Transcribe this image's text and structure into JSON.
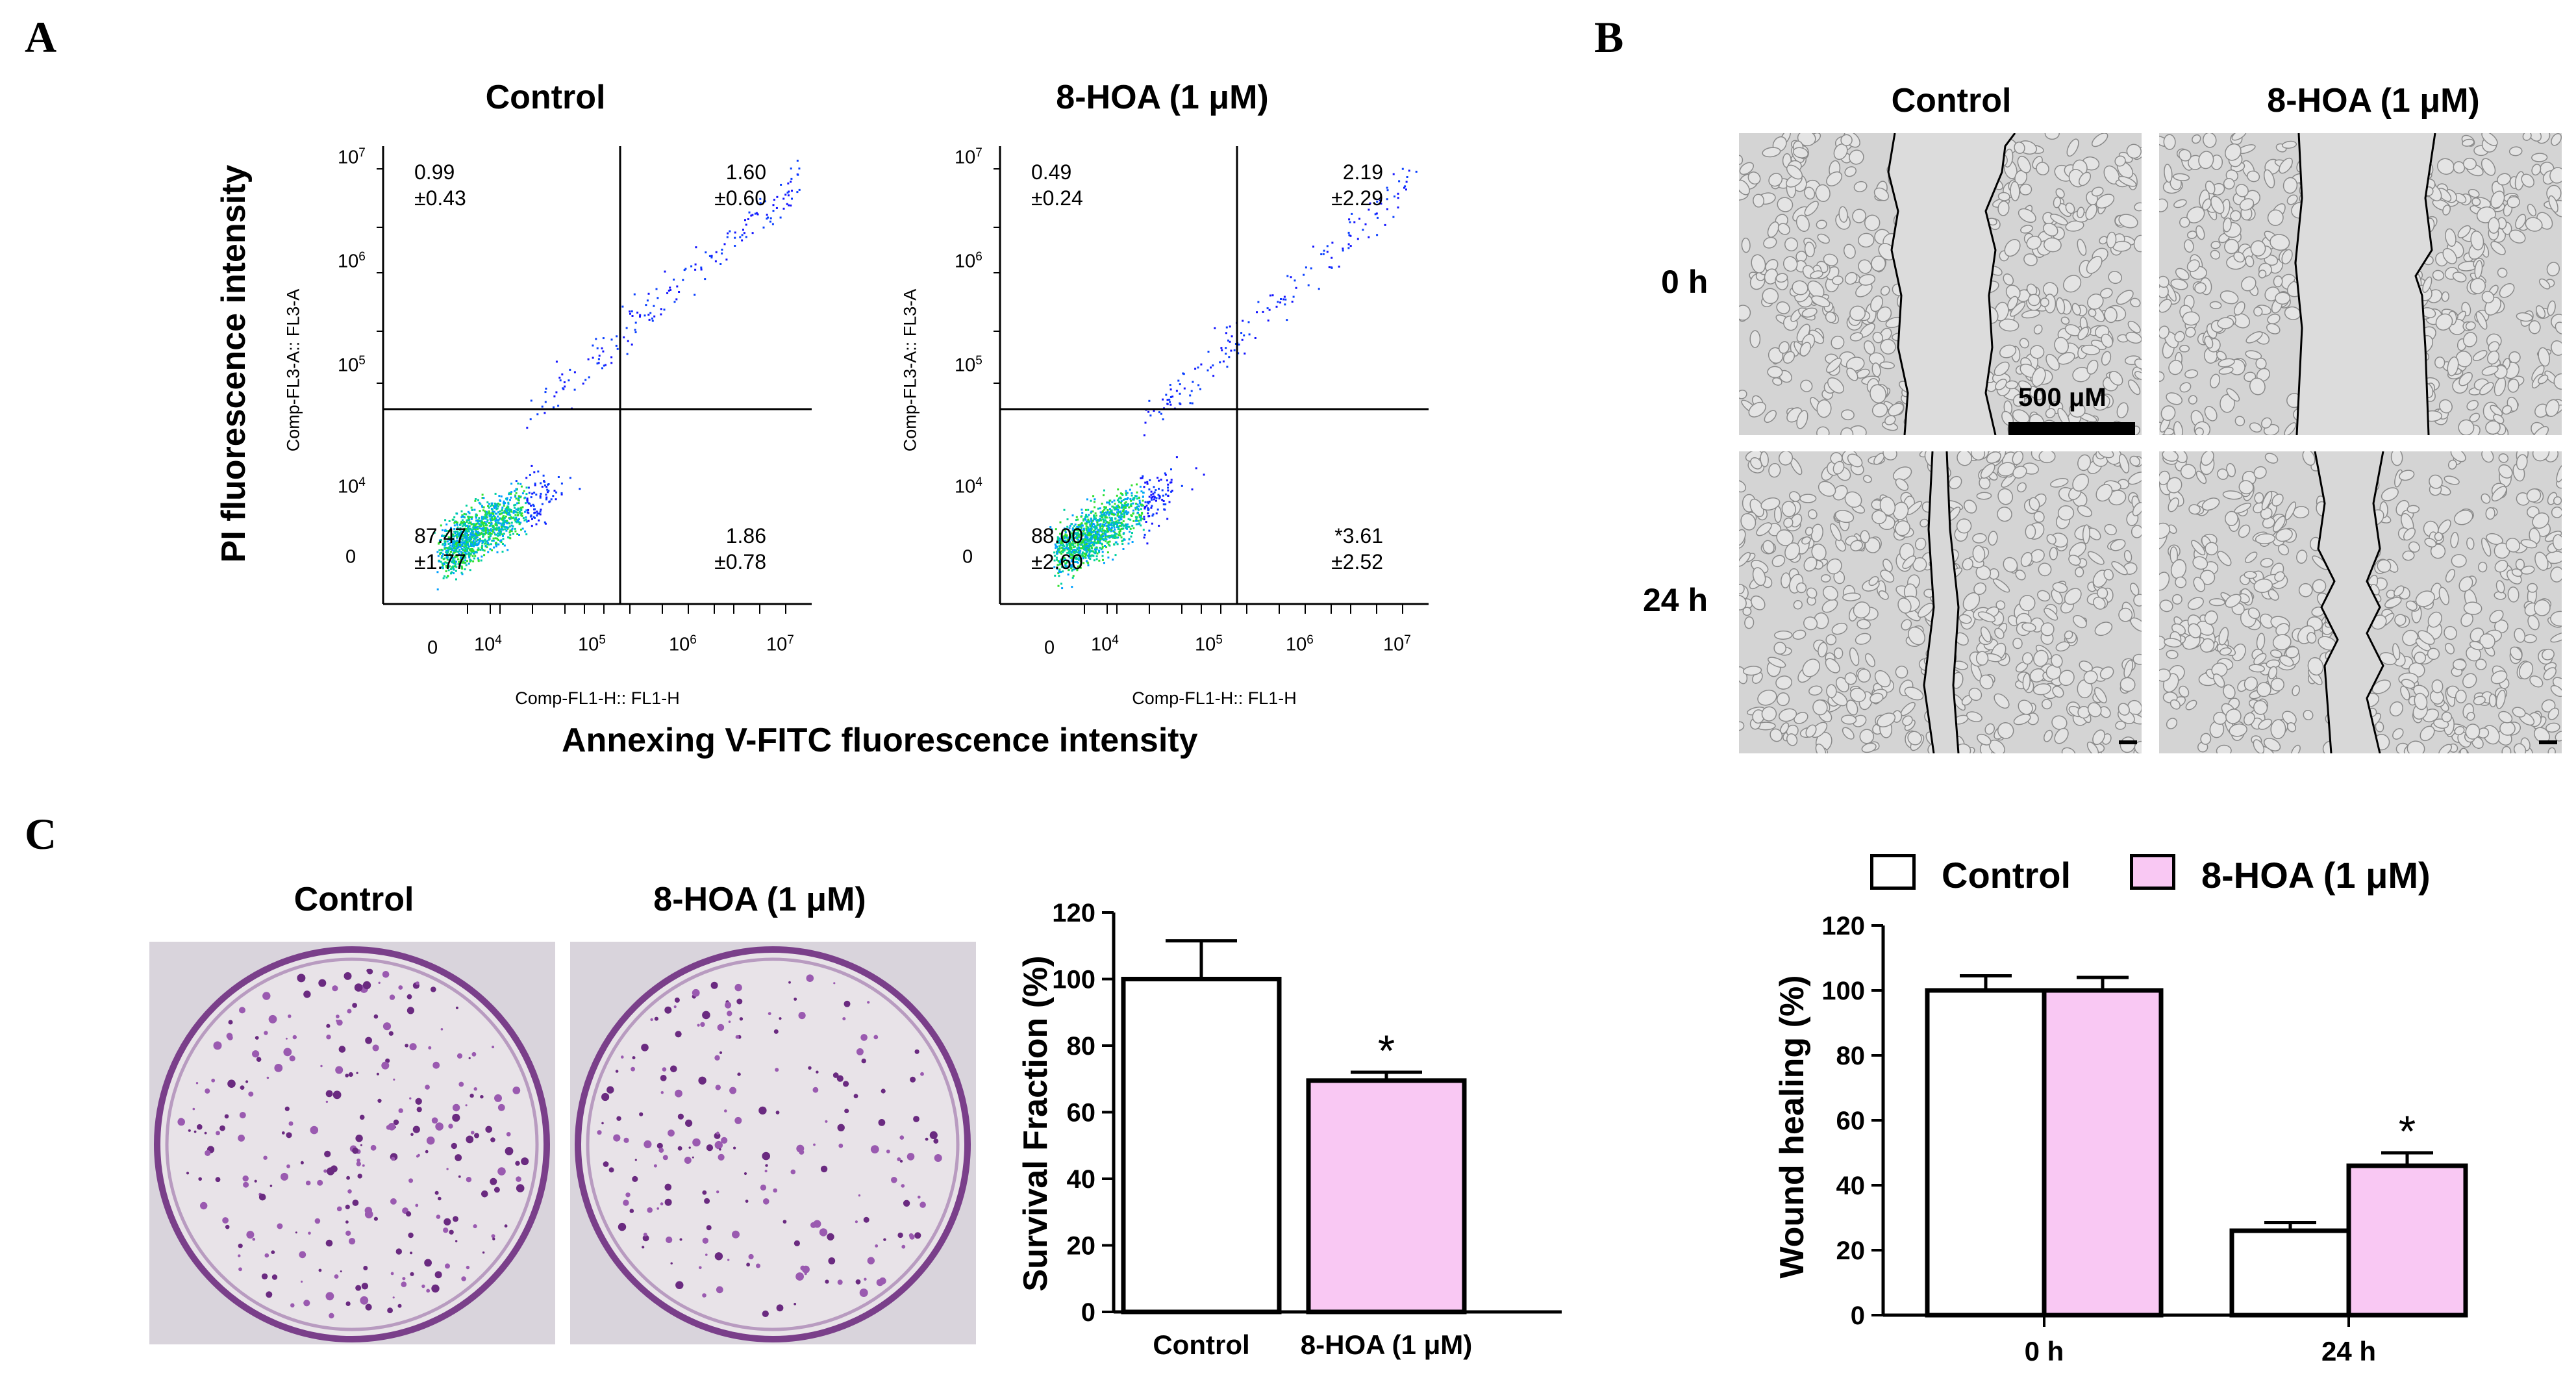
{
  "panel_letters": {
    "a": "A",
    "b": "B",
    "c": "C"
  },
  "panel_a": {
    "plots": [
      {
        "title": "Control",
        "y_axis": "Comp-FL3-A:: FL3-A",
        "x_axis": "Comp-FL1-H:: FL1-H",
        "quadrants": {
          "upper_left": {
            "value": "0.99",
            "sd": "±0.43"
          },
          "upper_right": {
            "value": "1.60",
            "sd": "±0.60"
          },
          "lower_left": {
            "value": "87.47",
            "sd": "±1.77"
          },
          "lower_right": {
            "value": "1.86",
            "sd": "±0.78"
          }
        }
      },
      {
        "title": "8-HOA (1 μM)",
        "y_axis": "Comp-FL3-A:: FL3-A",
        "x_axis": "Comp-FL1-H:: FL1-H",
        "quadrants": {
          "upper_left": {
            "value": "0.49",
            "sd": "±0.24"
          },
          "upper_right": {
            "value": "2.19",
            "sd": "±2.29"
          },
          "lower_left": {
            "value": "88.00",
            "sd": "±2.60"
          },
          "lower_right": {
            "value": "*3.61",
            "sd": "±2.52"
          }
        }
      }
    ],
    "y_ticks": [
      {
        "base": "10",
        "exp": "7"
      },
      {
        "base": "10",
        "exp": "6"
      },
      {
        "base": "10",
        "exp": "5"
      },
      {
        "base": "10",
        "exp": "4"
      },
      {
        "base": "0",
        "exp": ""
      }
    ],
    "x_ticks": [
      {
        "base": "0",
        "exp": ""
      },
      {
        "base": "10",
        "exp": "4"
      },
      {
        "base": "10",
        "exp": "5"
      },
      {
        "base": "10",
        "exp": "6"
      },
      {
        "base": "10",
        "exp": "7"
      }
    ],
    "y_label": "PI fluorescence intensity",
    "x_label": "Annexing V-FITC fluorescence intensity"
  },
  "panel_b": {
    "col_titles": [
      "Control",
      "8-HOA (1 μM)"
    ],
    "row_labels": [
      "0 h",
      "24 h"
    ],
    "scale_bar": "500 μM"
  },
  "panel_c": {
    "dish_titles": [
      "Control",
      "8-HOA (1 μM)"
    ]
  },
  "chart_data": [
    {
      "type": "bar",
      "title": "",
      "categories": [
        "Control",
        "8-HOA (1 μM)"
      ],
      "values": [
        100,
        69.5
      ],
      "errors": [
        11.5,
        2.5
      ],
      "significance": [
        "",
        "*"
      ],
      "colors": [
        "#ffffff",
        "#f9c8f3"
      ],
      "ylabel": "Survival Fraction (%)",
      "xlabel": "",
      "ylim": [
        0,
        120
      ],
      "yticks": [
        0,
        20,
        40,
        60,
        80,
        100,
        120
      ]
    },
    {
      "type": "bar",
      "title": "",
      "categories": [
        "0 h",
        "24 h"
      ],
      "series": [
        {
          "name": "Control",
          "values": [
            100,
            26
          ],
          "errors": [
            4.5,
            2.5
          ],
          "color": "#ffffff",
          "significance": [
            "",
            ""
          ]
        },
        {
          "name": "8-HOA (1 μM)",
          "values": [
            100,
            46
          ],
          "errors": [
            4,
            4
          ],
          "color": "#f9c8f3",
          "significance": [
            "",
            "*"
          ]
        }
      ],
      "ylabel": "Wound healing (%)",
      "xlabel": "",
      "ylim": [
        0,
        120
      ],
      "yticks": [
        0,
        20,
        40,
        60,
        80,
        100,
        120
      ],
      "legend_position": "top"
    }
  ]
}
